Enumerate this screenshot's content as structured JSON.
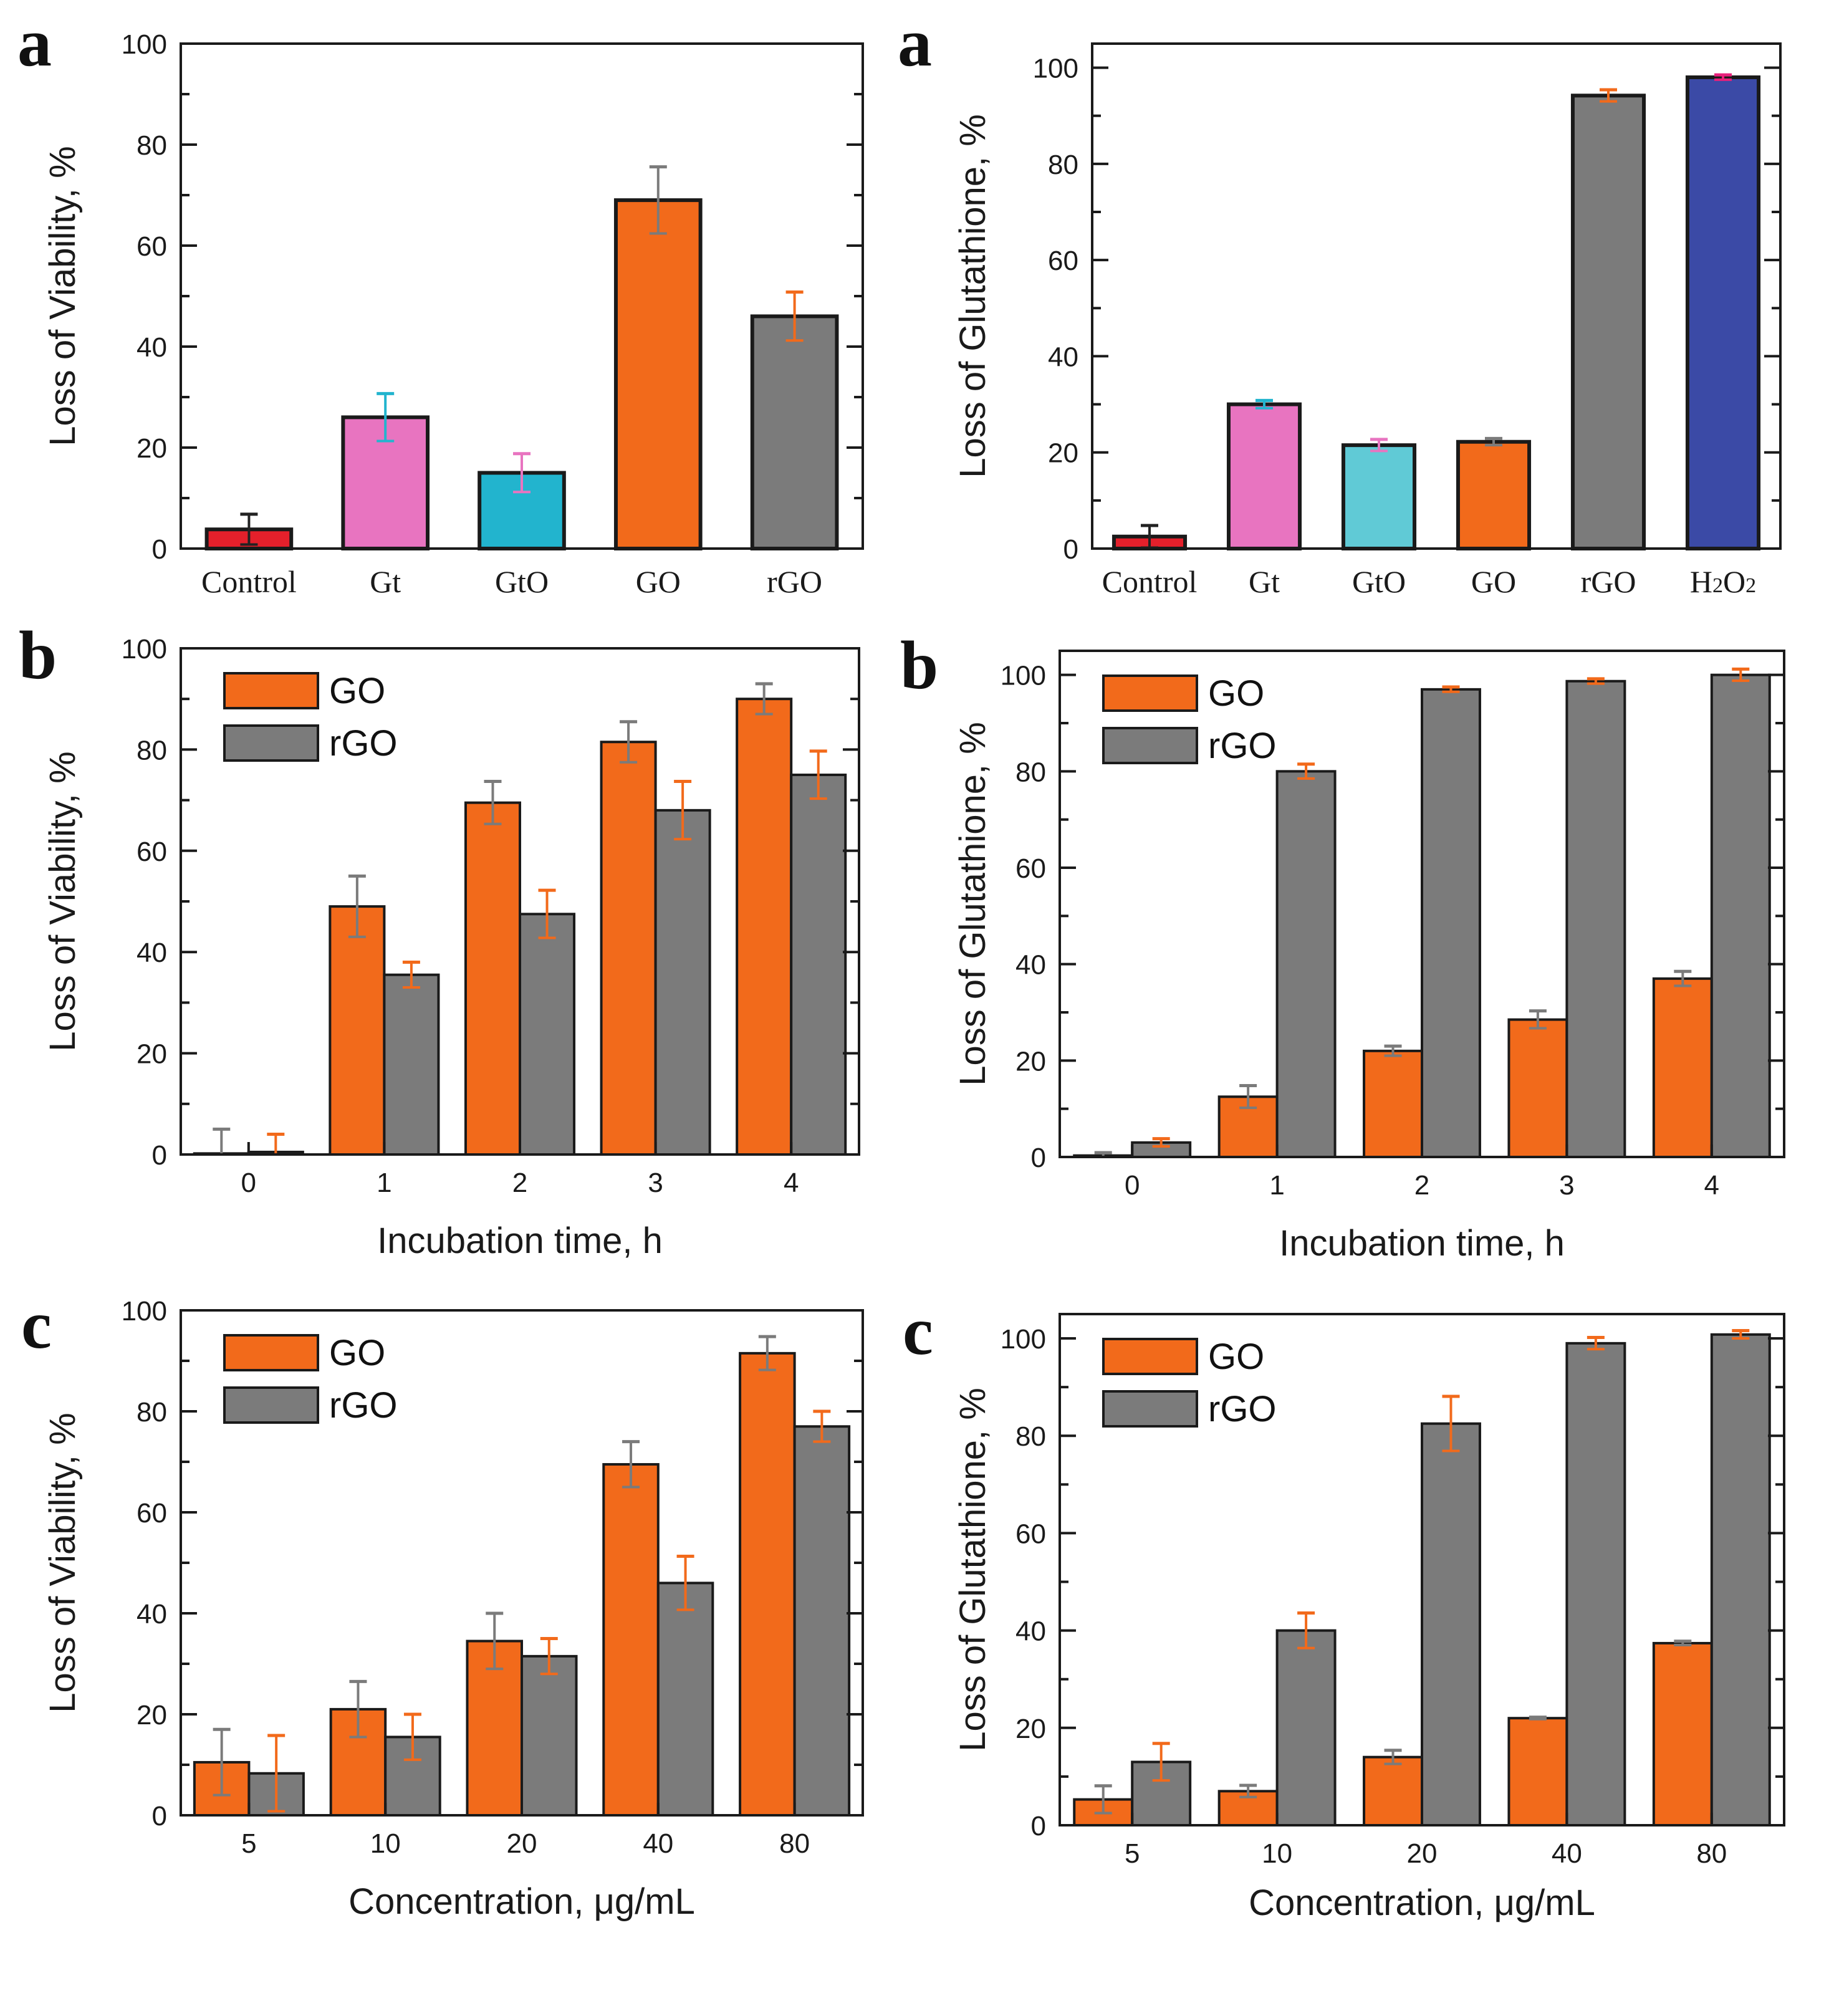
{
  "figure": {
    "colors": {
      "orange": "#F26A1B",
      "gray": "#7B7B7B",
      "pink": "#E874C0",
      "cyan_dark": "#22B4CE",
      "cyan_light": "#60CAD6",
      "red": "#E4202B",
      "blue": "#3B4AA6",
      "axis": "#1a1a1a"
    }
  },
  "chart_data": [
    {
      "id": "viability-materials",
      "panel_letter": "a",
      "type": "bar",
      "ylabel": "Loss of Viability, %",
      "xlabel": "",
      "ylim": [
        0,
        100
      ],
      "yticks": [
        0,
        20,
        40,
        60,
        80,
        100
      ],
      "category_font": "serif",
      "categories": [
        "Control",
        "Gt",
        "GtO",
        "GO",
        "rGO"
      ],
      "series": [
        {
          "name": "Loss of Viability",
          "values": [
            3.8,
            26,
            15,
            69,
            46
          ],
          "errors": [
            3,
            4.7,
            3.8,
            6.6,
            4.8
          ],
          "bar_colors": [
            "red",
            "pink",
            "cyan_dark",
            "orange",
            "gray"
          ],
          "error_colors": [
            "#222222",
            "#22B4CE",
            "#E874C0",
            "#7B7B7B",
            "#F26A1B"
          ]
        }
      ],
      "legend": null,
      "grid": false
    },
    {
      "id": "glutathione-materials",
      "panel_letter": "a",
      "type": "bar",
      "ylabel": "Loss of Glutathione, %",
      "xlabel": "",
      "ylim": [
        0,
        105
      ],
      "yticks": [
        0,
        20,
        40,
        60,
        80,
        100
      ],
      "category_font": "serif",
      "categories": [
        "Control",
        "Gt",
        "GtO",
        "GO",
        "rGO",
        "H2O2"
      ],
      "series": [
        {
          "name": "Loss of Glutathione",
          "values": [
            2.5,
            30,
            21.5,
            22.2,
            94.2,
            98
          ],
          "errors": [
            2.3,
            0.8,
            1.2,
            0.7,
            1.2,
            0.5
          ],
          "bar_colors": [
            "red",
            "pink",
            "cyan_light",
            "orange",
            "gray",
            "blue"
          ],
          "error_colors": [
            "#222222",
            "#22B4CE",
            "#E874C0",
            "#7B7B7B",
            "#F26A1B",
            "#E8207A"
          ]
        }
      ],
      "legend": null,
      "grid": false
    },
    {
      "id": "viability-time",
      "panel_letter": "b",
      "type": "bar",
      "ylabel": "Loss of Viability, %",
      "xlabel": "Incubation time, h",
      "ylim": [
        0,
        100
      ],
      "yticks": [
        0,
        20,
        40,
        60,
        80,
        100
      ],
      "category_font": "sans",
      "categories": [
        "0",
        "1",
        "2",
        "3",
        "4"
      ],
      "series": [
        {
          "name": "GO",
          "color": "orange",
          "error_color": "#7B7B7B",
          "values": [
            0.2,
            49,
            69.5,
            81.5,
            90
          ],
          "errors": [
            4.8,
            6,
            4.2,
            4,
            3
          ]
        },
        {
          "name": "rGO",
          "color": "gray",
          "error_color": "#F26A1B",
          "values": [
            0.5,
            35.5,
            47.5,
            68,
            75
          ],
          "errors": [
            3.5,
            2.5,
            4.7,
            5.7,
            4.7
          ]
        }
      ],
      "legend": {
        "entries": [
          "GO",
          "rGO"
        ],
        "position": "top-left"
      },
      "grid": false
    },
    {
      "id": "glutathione-time",
      "panel_letter": "b",
      "type": "bar",
      "ylabel": "Loss of Glutathione, %",
      "xlabel": "Incubation time, h",
      "ylim": [
        0,
        105
      ],
      "yticks": [
        0,
        20,
        40,
        60,
        80,
        100
      ],
      "category_font": "sans",
      "categories": [
        "0",
        "1",
        "2",
        "3",
        "4"
      ],
      "series": [
        {
          "name": "GO",
          "color": "orange",
          "error_color": "#7B7B7B",
          "values": [
            0.3,
            12.5,
            22,
            28.5,
            37
          ],
          "errors": [
            0.6,
            2.3,
            1,
            1.8,
            1.5
          ]
        },
        {
          "name": "rGO",
          "color": "gray",
          "error_color": "#F26A1B",
          "values": [
            3,
            80,
            97,
            98.7,
            100
          ],
          "errors": [
            0.8,
            1.5,
            0.5,
            0.5,
            1.2
          ]
        }
      ],
      "legend": {
        "entries": [
          "GO",
          "rGO"
        ],
        "position": "top-left"
      },
      "grid": false
    },
    {
      "id": "viability-concentration",
      "panel_letter": "c",
      "type": "bar",
      "ylabel": "Loss of Viability, %",
      "xlabel": "Concentration, μg/mL",
      "ylim": [
        0,
        100
      ],
      "yticks": [
        0,
        20,
        40,
        60,
        80,
        100
      ],
      "category_font": "sans",
      "categories": [
        "5",
        "10",
        "20",
        "40",
        "80"
      ],
      "series": [
        {
          "name": "GO",
          "color": "orange",
          "error_color": "#7B7B7B",
          "values": [
            10.5,
            21,
            34.5,
            69.5,
            91.5
          ],
          "errors": [
            6.5,
            5.5,
            5.5,
            4.5,
            3.3
          ]
        },
        {
          "name": "rGO",
          "color": "gray",
          "error_color": "#F26A1B",
          "values": [
            8.3,
            15.5,
            31.5,
            46,
            77
          ],
          "errors": [
            7.5,
            4.5,
            3.5,
            5.3,
            3
          ]
        }
      ],
      "legend": {
        "entries": [
          "GO",
          "rGO"
        ],
        "position": "top-left"
      },
      "grid": false
    },
    {
      "id": "glutathione-concentration",
      "panel_letter": "c",
      "type": "bar",
      "ylabel": "Loss of Glutathione, %",
      "xlabel": "Concentration, μg/mL",
      "ylim": [
        0,
        105
      ],
      "yticks": [
        0,
        20,
        40,
        60,
        80,
        100
      ],
      "category_font": "sans",
      "categories": [
        "5",
        "10",
        "20",
        "40",
        "80"
      ],
      "series": [
        {
          "name": "GO",
          "color": "orange",
          "error_color": "#7B7B7B",
          "values": [
            5.3,
            7,
            14,
            22,
            37.4
          ],
          "errors": [
            2.8,
            1.2,
            1.4,
            0.2,
            0.4
          ]
        },
        {
          "name": "rGO",
          "color": "gray",
          "error_color": "#F26A1B",
          "values": [
            13,
            40,
            82.5,
            99,
            100.8
          ],
          "errors": [
            3.8,
            3.6,
            5.6,
            1.2,
            0.8
          ]
        }
      ],
      "legend": {
        "entries": [
          "GO",
          "rGO"
        ],
        "position": "top-left"
      },
      "grid": false
    }
  ]
}
